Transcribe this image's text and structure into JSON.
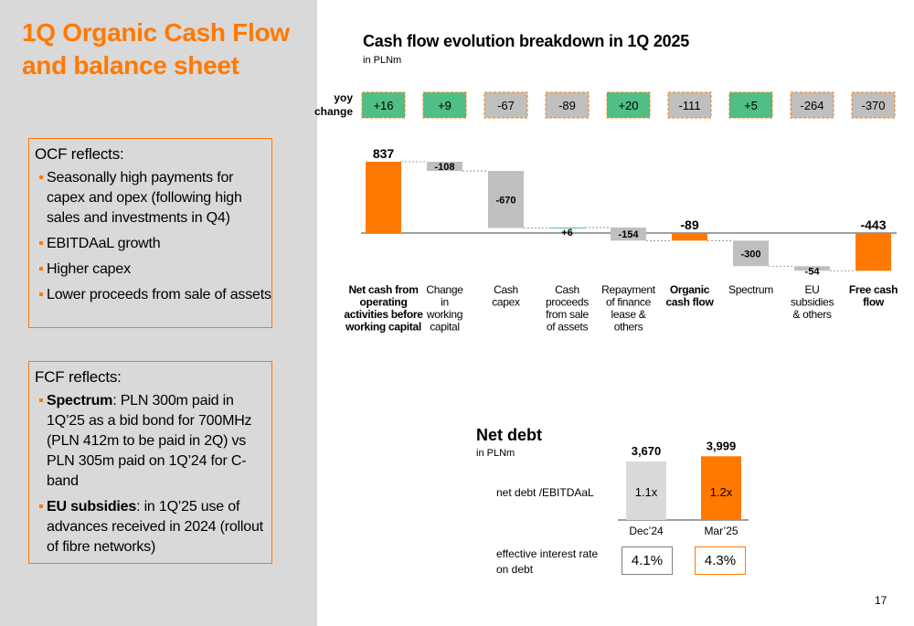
{
  "page": {
    "title": "1Q Organic Cash Flow and balance sheet",
    "page_number": "17",
    "colors": {
      "accent": "#ff7900",
      "positive": "#50be87",
      "neutral": "#bfbfbf",
      "panel": "#d9d9d9"
    }
  },
  "ocf_box": {
    "heading": "OCF reflects:",
    "bullets": [
      "Seasonally high payments for capex and opex (following high sales and investments in Q4)",
      "EBITDAaL growth",
      "Higher capex",
      "Lower proceeds from sale of assets"
    ]
  },
  "fcf_box": {
    "heading": "FCF reflects:",
    "bullets": [
      {
        "bold": "Spectrum",
        "text": ": PLN 300m paid in 1Q’25 as a bid bond for 700MHz (PLN 412m to be paid in 2Q) vs PLN 305m paid on 1Q’24 for C-band"
      },
      {
        "bold": "EU subsidies",
        "text": ": in 1Q’25 use of advances received in 2024 (rollout of fibre networks)"
      }
    ]
  },
  "chart_data": [
    {
      "type": "bar",
      "subtype": "waterfall",
      "title": "Cash flow evolution breakdown in 1Q 2025",
      "unit": "in PLNm",
      "yoy_label": "yoy change",
      "categories": [
        "Net cash from operating activities before working capital",
        "Change in working capital",
        "Cash capex",
        "Cash proceeds from sale of assets",
        "Repayment of finance lease & others",
        "Organic cash flow",
        "Spectrum",
        "EU subsidies & others",
        "Free cash flow"
      ],
      "category_lines": [
        [
          "Net cash from",
          "operating",
          "activities before",
          "working capital"
        ],
        [
          "Change",
          "in",
          "working",
          "capital"
        ],
        [
          "Cash",
          "capex"
        ],
        [
          "Cash",
          "proceeds",
          "from sale",
          "of assets"
        ],
        [
          "Repayment",
          "of finance",
          "lease &",
          "others"
        ],
        [
          "Organic",
          "cash flow"
        ],
        [
          "Spectrum"
        ],
        [
          "EU",
          "subsidies",
          "& others"
        ],
        [
          "Free cash",
          "flow"
        ]
      ],
      "bold_categories": [
        0,
        5,
        8
      ],
      "values": [
        837,
        -108,
        -670,
        6,
        -154,
        -89,
        -300,
        -54,
        -443
      ],
      "value_labels": [
        "837",
        "-108",
        "-670",
        "+6",
        "-154",
        "-89",
        "-300",
        "-54",
        "-443"
      ],
      "kinds": [
        "total",
        "delta",
        "delta",
        "delta",
        "delta",
        "total",
        "delta",
        "delta",
        "total"
      ],
      "yoy_change": [
        "+16",
        "+9",
        "-67",
        "-89",
        "+20",
        "-111",
        "+5",
        "-264",
        "-370"
      ],
      "yoy_positive": [
        true,
        true,
        false,
        false,
        true,
        false,
        true,
        false,
        false
      ]
    },
    {
      "type": "bar",
      "title": "Net debt",
      "unit": "in PLNm",
      "categories": [
        "Dec’24",
        "Mar’25"
      ],
      "values": [
        3670,
        3999
      ],
      "value_labels": [
        "3,670",
        "3,999"
      ],
      "ratio_label": "net debt /EBITDAaL",
      "ratio_values": [
        "1.1x",
        "1.2x"
      ],
      "rate_label": "effective interest rate on debt",
      "rate_values": [
        "4.1%",
        "4.3%"
      ]
    }
  ]
}
